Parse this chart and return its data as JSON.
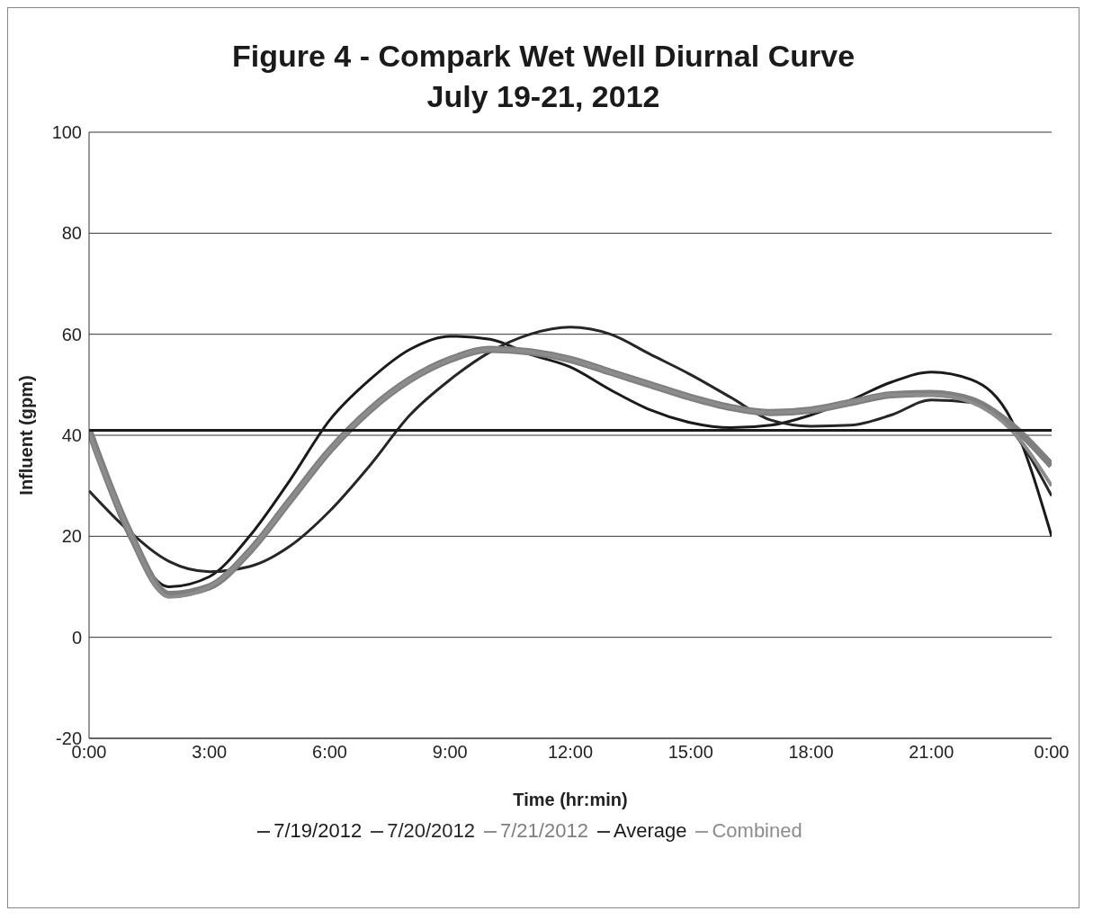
{
  "chart_data": {
    "type": "line",
    "title": "Figure 4 - Compark Wet Well Diurnal Curve",
    "subtitle": "July 19-21, 2012",
    "xlabel": "Time (hr:min)",
    "ylabel": "Influent (gpm)",
    "xlim": [
      0,
      24
    ],
    "xticks": [
      {
        "value": 0,
        "label": "0:00"
      },
      {
        "value": 3,
        "label": "3:00"
      },
      {
        "value": 6,
        "label": "6:00"
      },
      {
        "value": 9,
        "label": "9:00"
      },
      {
        "value": 12,
        "label": "12:00"
      },
      {
        "value": 15,
        "label": "15:00"
      },
      {
        "value": 18,
        "label": "18:00"
      },
      {
        "value": 21,
        "label": "21:00"
      },
      {
        "value": 24,
        "label": "0:00"
      }
    ],
    "ylim": [
      -20,
      100
    ],
    "yticks": [
      -20,
      0,
      20,
      40,
      60,
      80,
      100
    ],
    "grid": "y",
    "legend": "bottom",
    "marker": "none",
    "line_style": "solid",
    "x": [
      0,
      1,
      2,
      3,
      4,
      5,
      6,
      7,
      8,
      9,
      10,
      11,
      12,
      13,
      14,
      15,
      16,
      17,
      18,
      19,
      20,
      21,
      22,
      23,
      24
    ],
    "series": [
      {
        "name": "7/19/2012",
        "color": "#1a1a1a",
        "values": [
          41,
          20,
          10,
          12,
          20,
          31,
          43,
          51,
          57,
          59.6,
          59,
          56,
          53.5,
          49,
          45,
          42.5,
          41.5,
          42,
          44,
          47,
          50.5,
          52.5,
          51,
          43,
          20
        ]
      },
      {
        "name": "7/20/2012",
        "color": "#262626",
        "values": [
          29,
          21,
          15,
          13,
          14,
          18,
          25,
          34,
          44,
          51,
          56.5,
          60,
          61.4,
          60,
          56,
          52,
          47.5,
          43,
          41.8,
          42,
          44,
          47,
          46.5,
          41,
          28
        ]
      },
      {
        "name": "7/21/2012",
        "color": "#7f7f7f",
        "values": [
          41,
          21,
          8.5,
          10,
          17,
          27,
          37,
          45,
          51,
          55,
          57,
          56.5,
          55,
          52.5,
          50,
          47.5,
          45.5,
          44.5,
          45,
          46.5,
          48,
          48.3,
          47,
          42,
          34
        ]
      },
      {
        "name": "Combined",
        "color": "#8c8c8c",
        "values": [
          40.5,
          21,
          8,
          10,
          17,
          27,
          37,
          45,
          51,
          55,
          57,
          56.5,
          55,
          52.5,
          50,
          47.5,
          45.5,
          44.5,
          45,
          46.5,
          48,
          48,
          46.5,
          41,
          30
        ]
      },
      {
        "name": "Average",
        "color": "#1a1a1a",
        "x": [
          0,
          24
        ],
        "values": [
          41,
          41
        ]
      }
    ]
  }
}
